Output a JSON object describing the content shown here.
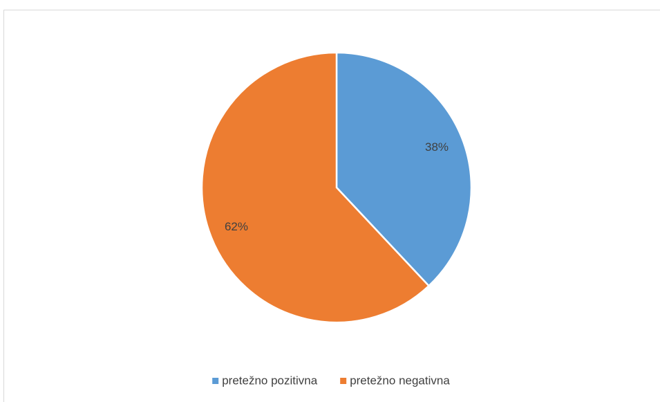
{
  "chart_data": {
    "type": "pie",
    "categories": [
      "pretežno pozitivna",
      "pretežno negativna"
    ],
    "values": [
      38,
      62
    ],
    "value_labels": [
      "38%",
      "62%"
    ],
    "colors": [
      "#5b9bd5",
      "#ed7d31"
    ],
    "legend": "bottom"
  }
}
